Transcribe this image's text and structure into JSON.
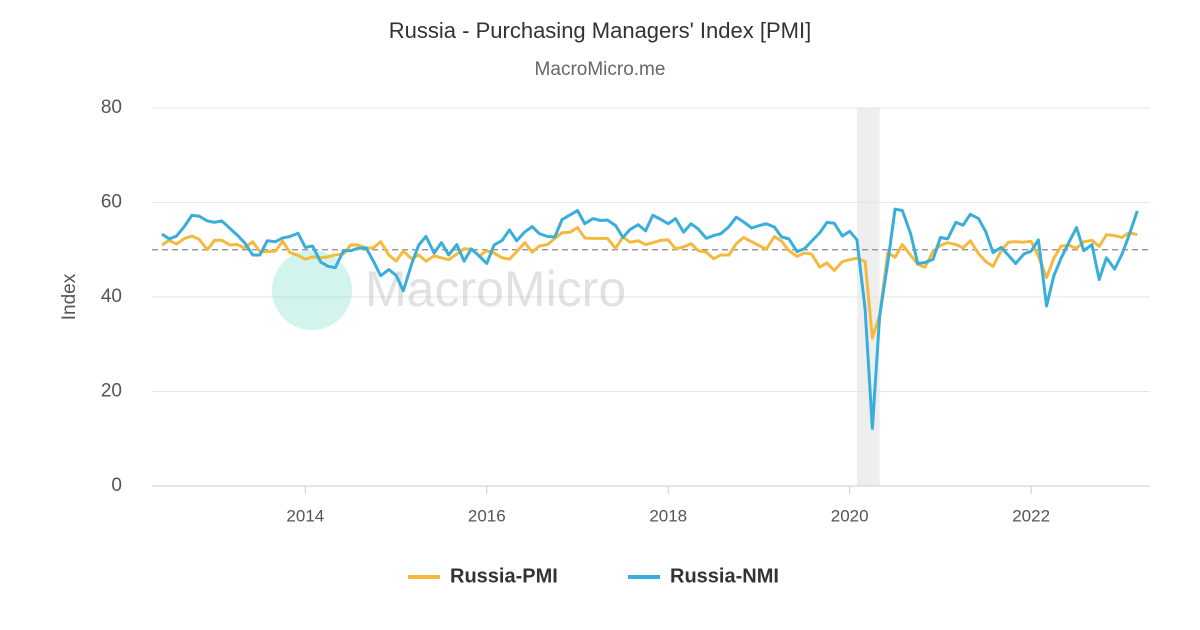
{
  "chart_data": {
    "type": "line",
    "title": "Russia - Purchasing Managers' Index [PMI]",
    "subtitle": "MacroMicro.me",
    "watermark": "MacroMicro",
    "y_label": "Index",
    "xlim": [
      2012.31,
      2023.31
    ],
    "xticks": [
      2014,
      2016,
      2018,
      2020,
      2022
    ],
    "ylim": [
      0,
      80
    ],
    "yticks": [
      0,
      20,
      40,
      60,
      80
    ],
    "grid": true,
    "reference_line": 50,
    "shade": [
      2020.08,
      2020.33
    ],
    "legend": "bottom",
    "x": [
      2012.42,
      2012.5,
      2012.58,
      2012.67,
      2012.75,
      2012.83,
      2012.92,
      2013,
      2013.08,
      2013.17,
      2013.25,
      2013.33,
      2013.42,
      2013.5,
      2013.58,
      2013.67,
      2013.75,
      2013.83,
      2013.92,
      2014,
      2014.08,
      2014.17,
      2014.25,
      2014.33,
      2014.42,
      2014.5,
      2014.58,
      2014.67,
      2014.75,
      2014.83,
      2014.92,
      2015,
      2015.08,
      2015.17,
      2015.25,
      2015.33,
      2015.42,
      2015.5,
      2015.58,
      2015.67,
      2015.75,
      2015.83,
      2015.92,
      2016,
      2016.08,
      2016.17,
      2016.25,
      2016.33,
      2016.42,
      2016.5,
      2016.58,
      2016.67,
      2016.75,
      2016.83,
      2016.92,
      2017,
      2017.08,
      2017.17,
      2017.25,
      2017.33,
      2017.42,
      2017.5,
      2017.58,
      2017.67,
      2017.75,
      2017.83,
      2017.92,
      2018,
      2018.08,
      2018.17,
      2018.25,
      2018.33,
      2018.42,
      2018.5,
      2018.58,
      2018.67,
      2018.75,
      2018.83,
      2018.92,
      2019,
      2019.08,
      2019.17,
      2019.25,
      2019.33,
      2019.42,
      2019.5,
      2019.58,
      2019.67,
      2019.75,
      2019.83,
      2019.92,
      2020,
      2020.08,
      2020.17,
      2020.25,
      2020.33,
      2020.42,
      2020.5,
      2020.58,
      2020.67,
      2020.75,
      2020.83,
      2020.92,
      2021,
      2021.08,
      2021.17,
      2021.25,
      2021.33,
      2021.42,
      2021.5,
      2021.58,
      2021.67,
      2021.75,
      2021.83,
      2021.92,
      2022,
      2022.08,
      2022.17,
      2022.25,
      2022.33,
      2022.42,
      2022.5,
      2022.58,
      2022.67,
      2022.75,
      2022.83,
      2022.92,
      2023,
      2023.08,
      2023.17
    ],
    "series": [
      {
        "name": "Russia-PMI",
        "color": "#f5b93e",
        "values": [
          51.0,
          52.0,
          51.2,
          52.4,
          52.9,
          52.2,
          50.0,
          52.0,
          52.0,
          51.0,
          51.1,
          50.4,
          51.7,
          49.6,
          49.6,
          49.7,
          51.8,
          49.4,
          48.8,
          48.0,
          48.5,
          48.3,
          48.5,
          48.9,
          49.1,
          51.0,
          51.0,
          50.4,
          50.4,
          51.7,
          48.9,
          47.6,
          49.7,
          48.1,
          48.9,
          47.6,
          48.7,
          48.3,
          47.9,
          49.1,
          50.2,
          50.1,
          48.7,
          49.8,
          49.3,
          48.3,
          48.0,
          49.6,
          51.5,
          49.5,
          50.8,
          51.1,
          52.4,
          53.6,
          53.7,
          54.7,
          52.5,
          52.4,
          52.4,
          52.4,
          50.3,
          52.7,
          51.6,
          51.9,
          51.1,
          51.5,
          52.0,
          52.1,
          50.2,
          50.6,
          51.3,
          49.8,
          49.5,
          48.1,
          48.9,
          48.9,
          51.3,
          52.6,
          51.7,
          50.9,
          50.1,
          52.8,
          51.8,
          49.8,
          48.6,
          49.3,
          49.1,
          46.3,
          47.2,
          45.6,
          47.5,
          47.9,
          48.2,
          47.5,
          31.3,
          36.2,
          49.4,
          48.4,
          51.1,
          48.9,
          46.9,
          46.3,
          49.7,
          50.9,
          51.5,
          51.1,
          50.4,
          51.9,
          49.2,
          47.5,
          46.5,
          49.8,
          51.6,
          51.7,
          51.6,
          51.8,
          48.6,
          44.1,
          48.2,
          50.8,
          50.9,
          50.3,
          51.7,
          52.0,
          50.7,
          53.2,
          53.0,
          52.6,
          53.6,
          53.2
        ]
      },
      {
        "name": "Russia-NMI",
        "color": "#3aaedb",
        "values": [
          53.3,
          52.3,
          52.9,
          55.0,
          57.3,
          57.1,
          56.1,
          55.8,
          56.1,
          54.5,
          53.1,
          51.5,
          48.9,
          48.9,
          51.9,
          51.7,
          52.5,
          52.8,
          53.5,
          50.5,
          50.8,
          47.4,
          46.5,
          46.2,
          49.8,
          49.8,
          50.3,
          50.4,
          47.6,
          44.5,
          45.8,
          44.6,
          41.3,
          46.9,
          51.0,
          52.8,
          49.3,
          51.5,
          48.9,
          51.1,
          47.6,
          50.2,
          48.6,
          47.1,
          51.0,
          52.0,
          54.2,
          51.9,
          53.8,
          54.9,
          53.4,
          52.8,
          52.7,
          56.4,
          57.4,
          58.3,
          55.5,
          56.6,
          56.2,
          56.3,
          55.1,
          52.6,
          54.3,
          55.3,
          54.0,
          57.3,
          56.4,
          55.5,
          56.6,
          53.7,
          55.5,
          54.4,
          52.4,
          53.0,
          53.4,
          54.9,
          56.9,
          55.9,
          54.6,
          55.1,
          55.5,
          54.8,
          52.7,
          52.3,
          49.6,
          50.2,
          51.8,
          53.6,
          55.8,
          55.6,
          52.9,
          53.9,
          52.1,
          37.4,
          12.2,
          35.9,
          47.3,
          58.6,
          58.3,
          53.5,
          47.1,
          47.3,
          48.0,
          52.6,
          52.3,
          55.8,
          55.2,
          57.5,
          56.6,
          53.8,
          49.4,
          50.5,
          48.8,
          47.1,
          49.1,
          49.7,
          52.1,
          38.1,
          44.5,
          48.2,
          51.7,
          54.7,
          49.8,
          51.1,
          43.7,
          48.3,
          45.9,
          49.0,
          53.1,
          58.2
        ]
      }
    ]
  }
}
